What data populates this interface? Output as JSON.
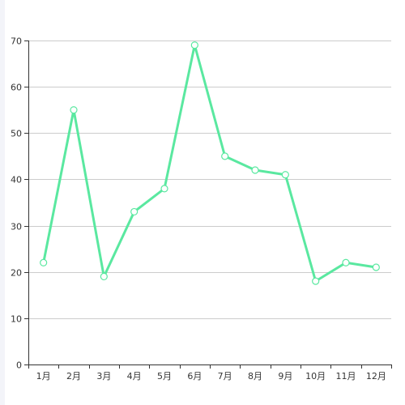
{
  "chart_data": {
    "type": "line",
    "title": "",
    "xlabel": "",
    "ylabel": "",
    "categories": [
      "1月",
      "2月",
      "3月",
      "4月",
      "5月",
      "6月",
      "7月",
      "8月",
      "9月",
      "10月",
      "11月",
      "12月"
    ],
    "series": [
      {
        "values": [
          22,
          55,
          19,
          33,
          38,
          69,
          45,
          42,
          41,
          18,
          22,
          21
        ]
      }
    ],
    "ylim": [
      0,
      70
    ],
    "yticks": [
      0,
      10,
      20,
      30,
      40,
      50,
      60,
      70
    ],
    "grid": true,
    "legend": "none",
    "colors": {
      "line": "#5ae8a0",
      "marker_fill": "#ffffff",
      "grid": "#cccccc",
      "axis": "#333333"
    }
  }
}
